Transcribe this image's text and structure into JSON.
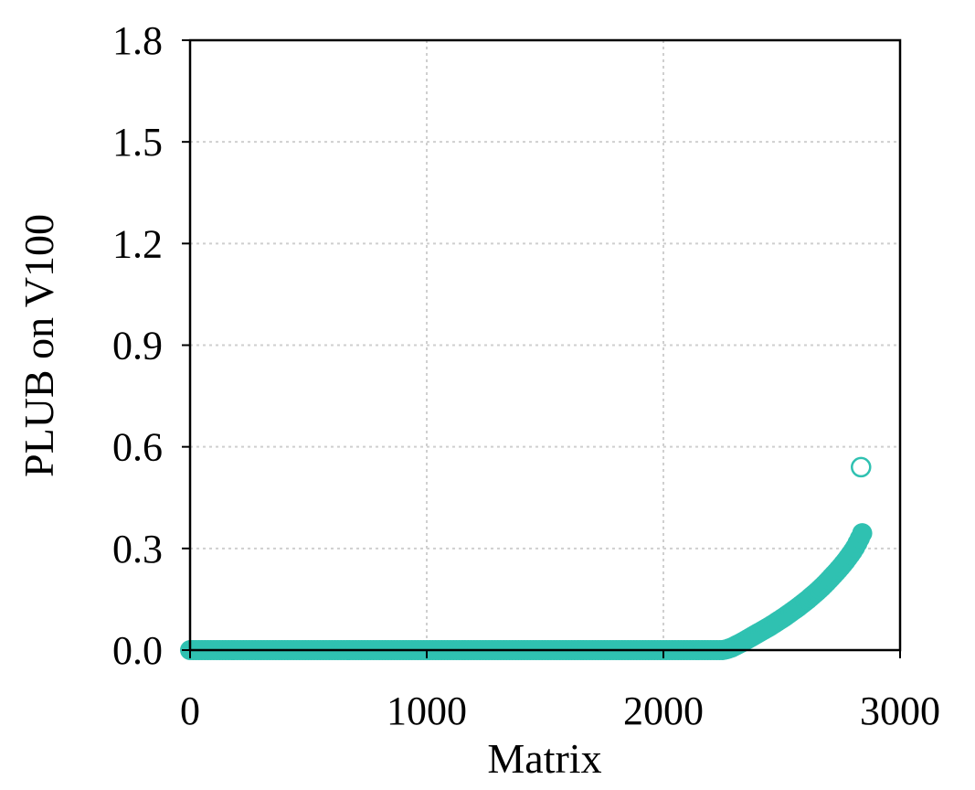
{
  "chart_data": {
    "type": "scatter",
    "title": "",
    "xlabel": "Matrix",
    "ylabel": "PLUB on V100",
    "xlim": [
      0,
      3000
    ],
    "ylim": [
      0,
      1.8
    ],
    "xticks": [
      0,
      1000,
      2000,
      3000
    ],
    "xtick_labels": [
      "0",
      "1000",
      "2000",
      "3000"
    ],
    "yticks": [
      0,
      0.3,
      0.6,
      0.9,
      1.2,
      1.5,
      1.8
    ],
    "ytick_labels": [
      "0.0",
      "0.3",
      "0.6",
      "0.9",
      "1.2",
      "1.5",
      "1.8"
    ],
    "grid": true,
    "marker_color": "#2FC1B1",
    "series": [
      {
        "marker": "filled-circle",
        "x": [
          0,
          50,
          100,
          150,
          200,
          250,
          300,
          350,
          400,
          450,
          500,
          550,
          600,
          650,
          700,
          750,
          800,
          850,
          900,
          950,
          1000,
          1050,
          1100,
          1150,
          1200,
          1250,
          1300,
          1350,
          1400,
          1450,
          1500,
          1550,
          1600,
          1650,
          1700,
          1750,
          1800,
          1850,
          1900,
          1950,
          2000,
          2050,
          2100,
          2150,
          2200,
          2250,
          2270,
          2290,
          2310,
          2330,
          2350,
          2370,
          2390,
          2410,
          2430,
          2450,
          2470,
          2490,
          2510,
          2530,
          2550,
          2570,
          2590,
          2610,
          2630,
          2650,
          2670,
          2690,
          2710,
          2730,
          2750,
          2770,
          2790,
          2800,
          2810,
          2820,
          2830,
          2840
        ],
        "y": [
          0,
          0,
          0,
          0,
          0,
          0,
          0,
          0,
          0,
          0,
          0,
          0,
          0,
          0,
          0,
          0,
          0,
          0,
          0,
          0,
          0,
          0,
          0,
          0,
          0,
          0,
          0,
          0,
          0,
          0,
          0,
          0,
          0,
          0,
          0,
          0,
          0,
          0,
          0,
          0,
          0,
          0,
          0,
          0,
          0,
          0,
          0.003,
          0.008,
          0.015,
          0.022,
          0.03,
          0.038,
          0.046,
          0.054,
          0.062,
          0.07,
          0.079,
          0.088,
          0.097,
          0.107,
          0.117,
          0.127,
          0.138,
          0.149,
          0.161,
          0.173,
          0.186,
          0.2,
          0.215,
          0.23,
          0.246,
          0.263,
          0.282,
          0.292,
          0.303,
          0.316,
          0.33,
          0.345
        ]
      },
      {
        "marker": "open-circle",
        "x": [
          2835
        ],
        "y": [
          0.54
        ]
      }
    ]
  }
}
